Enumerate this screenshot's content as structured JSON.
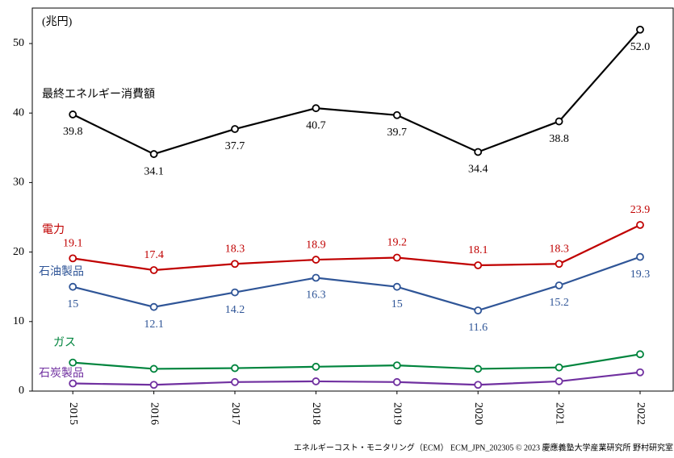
{
  "chart_data": {
    "type": "line",
    "unit_label": "(兆円)",
    "categories": [
      "2015",
      "2016",
      "2017",
      "2018",
      "2019",
      "2020",
      "2021",
      "2022"
    ],
    "series": [
      {
        "name": "最終エネルギー消費額",
        "color": "#000000",
        "values": [
          39.8,
          34.1,
          37.7,
          40.7,
          39.7,
          34.4,
          38.8,
          52.0
        ],
        "value_labels": [
          "39.8",
          "34.1",
          "37.7",
          "40.7",
          "39.7",
          "34.4",
          "38.8",
          "52.0"
        ]
      },
      {
        "name": "電力",
        "color": "#c00000",
        "values": [
          19.1,
          17.4,
          18.3,
          18.9,
          19.2,
          18.1,
          18.3,
          23.9
        ]
      },
      {
        "name": "石油製品",
        "color": "#2f5597",
        "values": [
          15.0,
          12.1,
          14.2,
          16.3,
          15.0,
          11.6,
          15.2,
          19.3
        ]
      },
      {
        "name": "ガス",
        "color": "#00843d",
        "values": [
          4.1,
          3.2,
          3.3,
          3.5,
          3.7,
          3.2,
          3.4,
          5.3
        ]
      },
      {
        "name": "石炭製品",
        "color": "#7030a0",
        "values": [
          1.1,
          0.9,
          1.3,
          1.4,
          1.3,
          0.9,
          1.4,
          2.7
        ]
      }
    ],
    "ylim": [
      0,
      50
    ],
    "yticks": [
      0,
      10,
      20,
      30,
      40,
      50
    ],
    "source": "エネルギーコスト・モニタリング（ECM） ECM_JPN_202305 © 2023 慶應義塾大学産業研究所 野村研究室"
  }
}
